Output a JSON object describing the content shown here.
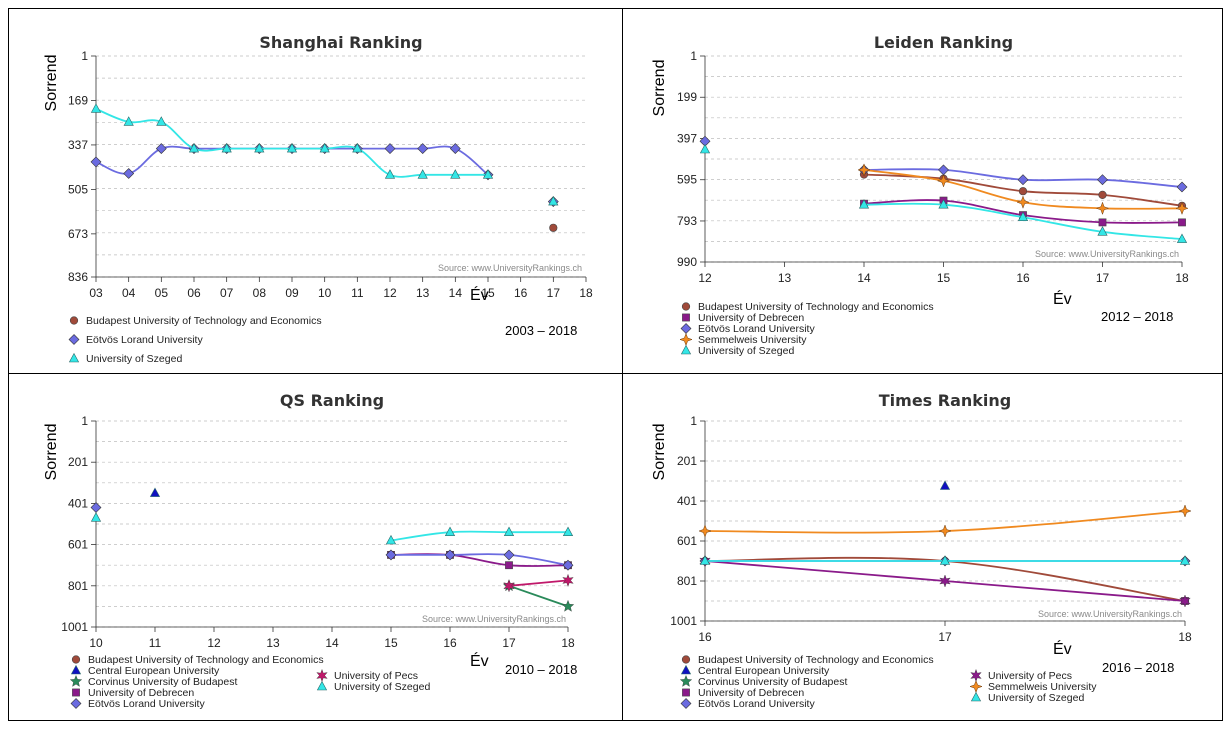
{
  "chart_data": [
    {
      "type": "line",
      "title": "Shanghai Ranking",
      "ylabel": "Sorrend",
      "xlabel": "Év",
      "period": "2003 – 2018",
      "source": "Source: www.UniversityRankings.ch",
      "y_ticks": [
        "1",
        "169",
        "337",
        "505",
        "673",
        "836"
      ],
      "x_ticks": [
        "03",
        "04",
        "05",
        "06",
        "07",
        "08",
        "09",
        "10",
        "11",
        "12",
        "13",
        "14",
        "15",
        "16",
        "17",
        "18"
      ],
      "y_reversed": true,
      "ylim": [
        1,
        836
      ],
      "xlim": [
        3,
        18
      ],
      "series": [
        {
          "name": "Budapest University of Technology and Economics",
          "color": "#a04a3a",
          "marker": "circle",
          "curve": false,
          "points": [
            [
              17,
              650
            ]
          ]
        },
        {
          "name": "Eötvös Lorand University",
          "color": "#6b6be0",
          "marker": "diamond",
          "curve": true,
          "points": [
            [
              3,
              401
            ],
            [
              4,
              445
            ],
            [
              5,
              351
            ],
            [
              6,
              351
            ],
            [
              7,
              351
            ],
            [
              8,
              351
            ],
            [
              9,
              351
            ],
            [
              10,
              351
            ],
            [
              11,
              351
            ],
            [
              12,
              351
            ],
            [
              13,
              351
            ],
            [
              14,
              351
            ],
            [
              15,
              450
            ],
            [
              17,
              551
            ]
          ]
        },
        {
          "name": "University of Szeged",
          "color": "#33e6e6",
          "marker": "triangle",
          "curve": true,
          "points": [
            [
              3,
              201
            ],
            [
              4,
              250
            ],
            [
              5,
              250
            ],
            [
              6,
              351
            ],
            [
              7,
              351
            ],
            [
              8,
              351
            ],
            [
              9,
              351
            ],
            [
              10,
              351
            ],
            [
              11,
              351
            ],
            [
              12,
              450
            ],
            [
              13,
              450
            ],
            [
              14,
              450
            ],
            [
              15,
              450
            ],
            [
              17,
              551
            ]
          ]
        }
      ]
    },
    {
      "type": "line",
      "title": "Leiden Ranking",
      "ylabel": "Sorrend",
      "xlabel": "Év",
      "period": "2012 – 2018",
      "source": "Source: www.UniversityRankings.ch",
      "y_ticks": [
        "1",
        "199",
        "397",
        "595",
        "793",
        "990"
      ],
      "x_ticks": [
        "12",
        "13",
        "14",
        "15",
        "16",
        "17",
        "18"
      ],
      "y_reversed": true,
      "ylim": [
        1,
        990
      ],
      "xlim": [
        12,
        18
      ],
      "series": [
        {
          "name": "Budapest University of Technology and Economics",
          "color": "#a04a3a",
          "marker": "circle",
          "curve": true,
          "points": [
            [
              14,
              570
            ],
            [
              15,
              590
            ],
            [
              16,
              650
            ],
            [
              17,
              668
            ],
            [
              18,
              720
            ]
          ]
        },
        {
          "name": "University of Debrecen",
          "color": "#8a1a8a",
          "marker": "square",
          "curve": true,
          "points": [
            [
              14,
              710
            ],
            [
              15,
              695
            ],
            [
              16,
              765
            ],
            [
              17,
              800
            ],
            [
              18,
              800
            ]
          ]
        },
        {
          "name": "Eötvös Lorand University",
          "color": "#6b6be0",
          "marker": "diamond",
          "curve": true,
          "points": [
            [
              12,
              410
            ],
            [
              14,
              548
            ],
            [
              15,
              548
            ],
            [
              16,
              595
            ],
            [
              17,
              595
            ],
            [
              18,
              630
            ]
          ]
        },
        {
          "name": "Semmelweis University",
          "color": "#f08a20",
          "marker": "star",
          "curve": true,
          "points": [
            [
              14,
              548
            ],
            [
              15,
              600
            ],
            [
              16,
              703
            ],
            [
              17,
              732
            ],
            [
              18,
              732
            ]
          ]
        },
        {
          "name": "University of Szeged",
          "color": "#33e6e6",
          "marker": "triangle",
          "curve": true,
          "points": [
            [
              12,
              450
            ],
            [
              14,
              715
            ],
            [
              15,
              715
            ],
            [
              16,
              775
            ],
            [
              17,
              845
            ],
            [
              18,
              880
            ]
          ]
        }
      ]
    },
    {
      "type": "line",
      "title": "QS Ranking",
      "ylabel": "Sorrend",
      "xlabel": "Év",
      "period": "2010 – 2018",
      "source": "Source: www.UniversityRankings.ch",
      "y_ticks": [
        "1",
        "201",
        "401",
        "601",
        "801",
        "1001"
      ],
      "x_ticks": [
        "10",
        "11",
        "12",
        "13",
        "14",
        "15",
        "16",
        "17",
        "18"
      ],
      "y_reversed": true,
      "ylim": [
        1,
        1001
      ],
      "xlim": [
        10,
        18
      ],
      "series": [
        {
          "name": "Budapest University of Technology and Economics",
          "color": "#a04a3a",
          "marker": "circle",
          "curve": false,
          "points": []
        },
        {
          "name": "Central European University",
          "color": "#1010c0",
          "marker": "triangle",
          "curve": false,
          "points": [
            [
              11,
              351
            ]
          ]
        },
        {
          "name": "Corvinus University of Budapest",
          "color": "#2a8a5a",
          "marker": "star5",
          "curve": true,
          "points": [
            [
              17,
              801
            ],
            [
              18,
              901
            ]
          ]
        },
        {
          "name": "University of Debrecen",
          "color": "#8a1a8a",
          "marker": "square",
          "curve": true,
          "points": [
            [
              15,
              651
            ],
            [
              16,
              651
            ],
            [
              17,
              701
            ],
            [
              18,
              701
            ]
          ]
        },
        {
          "name": "Eötvös Lorand University",
          "color": "#6b6be0",
          "marker": "diamond",
          "curve": true,
          "points": [
            [
              10,
              421
            ],
            [
              15,
              651
            ],
            [
              16,
              651
            ],
            [
              17,
              651
            ],
            [
              18,
              701
            ]
          ]
        },
        {
          "name": "University of Pecs",
          "color": "#c0186a",
          "marker": "star6",
          "curve": true,
          "points": [
            [
              17,
              801
            ],
            [
              18,
              775
            ]
          ]
        },
        {
          "name": "University of Szeged",
          "color": "#33e6e6",
          "marker": "triangle",
          "curve": true,
          "points": [
            [
              10,
              471
            ],
            [
              15,
              581
            ],
            [
              16,
              541
            ],
            [
              17,
              541
            ],
            [
              18,
              541
            ]
          ]
        }
      ]
    },
    {
      "type": "line",
      "title": "Times Ranking",
      "ylabel": "Sorrend",
      "xlabel": "Év",
      "period": "2016 – 2018",
      "source": "Source: www.UniversityRankings.ch",
      "y_ticks": [
        "1",
        "201",
        "401",
        "601",
        "801",
        "1001"
      ],
      "x_ticks": [
        "16",
        "17",
        "18"
      ],
      "y_reversed": true,
      "ylim": [
        1,
        1001
      ],
      "xlim": [
        16,
        18
      ],
      "series": [
        {
          "name": "Budapest University of Technology and Economics",
          "color": "#a04a3a",
          "marker": "circle",
          "curve": true,
          "points": [
            [
              16,
              701
            ],
            [
              17,
              701
            ],
            [
              18,
              901
            ]
          ]
        },
        {
          "name": "Central European University",
          "color": "#1010c0",
          "marker": "triangle",
          "curve": false,
          "points": [
            [
              17,
              326
            ]
          ]
        },
        {
          "name": "Corvinus University of Budapest",
          "color": "#2a8a5a",
          "marker": "star5",
          "curve": false,
          "points": []
        },
        {
          "name": "University of Debrecen",
          "color": "#8a1a8a",
          "marker": "square",
          "curve": true,
          "points": [
            [
              18,
              901
            ]
          ]
        },
        {
          "name": "Eötvös Lorand University",
          "color": "#6b6be0",
          "marker": "diamond",
          "curve": true,
          "points": [
            [
              16,
              701
            ],
            [
              17,
              701
            ],
            [
              18,
              701
            ]
          ]
        },
        {
          "name": "University of Pecs",
          "color": "#8a1a8a",
          "marker": "star6",
          "curve": true,
          "points": [
            [
              16,
              701
            ],
            [
              17,
              801
            ],
            [
              18,
              901
            ]
          ]
        },
        {
          "name": "Semmelweis University",
          "color": "#f08a20",
          "marker": "star",
          "curve": true,
          "points": [
            [
              16,
              551
            ],
            [
              17,
              551
            ],
            [
              18,
              451
            ]
          ]
        },
        {
          "name": "University of Szeged",
          "color": "#33e6e6",
          "marker": "triangle",
          "curve": true,
          "points": [
            [
              16,
              701
            ],
            [
              17,
              701
            ],
            [
              18,
              701
            ]
          ]
        }
      ]
    }
  ]
}
